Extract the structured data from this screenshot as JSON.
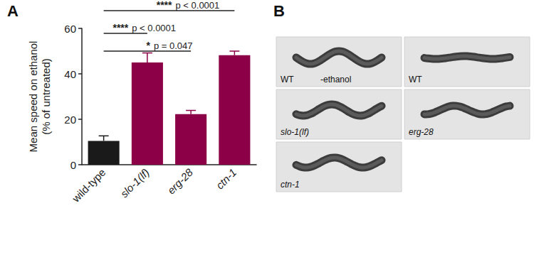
{
  "chart_data": {
    "type": "bar",
    "panel": "A",
    "categories": [
      "wild-type",
      "slo-1(lf)",
      "erg-28",
      "ctn-1"
    ],
    "values": [
      10.5,
      45,
      22.3,
      48.2
    ],
    "errors": [
      2.2,
      4.2,
      1.6,
      1.8
    ],
    "colors": [
      "#1a1a1a",
      "#8b0046",
      "#8b0046",
      "#8b0046"
    ],
    "ylabel": "Mean speed on ethanol\n(% of untreated)",
    "ylim": [
      0,
      60
    ],
    "yticks": [
      0,
      20,
      40,
      60
    ],
    "grid": false,
    "annotations": [
      {
        "from": "wild-type",
        "to": "ctn-1",
        "stars": "****",
        "text": "p < 0.0001"
      },
      {
        "from": "wild-type",
        "to": "slo-1(lf)",
        "stars": "****",
        "text": "p < 0.0001"
      },
      {
        "from": "wild-type",
        "to": "erg-28",
        "stars": "*",
        "text": "p = 0.047"
      }
    ]
  },
  "panel_b": {
    "panel": "B",
    "images": [
      {
        "label": "WT",
        "condition": "-ethanol"
      },
      {
        "label": "WT"
      },
      {
        "label": "slo-1(lf)"
      },
      {
        "label": "erg-28"
      },
      {
        "label": "ctn-1"
      }
    ]
  }
}
